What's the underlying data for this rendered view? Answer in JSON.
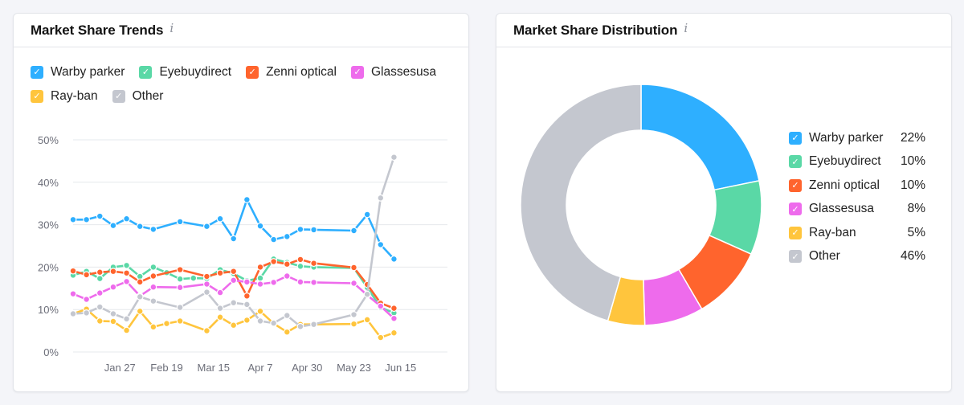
{
  "trends": {
    "title": "Market Share Trends",
    "info_icon": "i",
    "legend": [
      {
        "label": "Warby parker",
        "color": "#2eafff"
      },
      {
        "label": "Eyebuydirect",
        "color": "#5ad8a6"
      },
      {
        "label": "Zenni optical",
        "color": "#ff642d"
      },
      {
        "label": "Glassesusa",
        "color": "#ee6bec"
      },
      {
        "label": "Ray-ban",
        "color": "#ffc53d"
      },
      {
        "label": "Other",
        "color": "#c4c7cf"
      }
    ]
  },
  "distribution": {
    "title": "Market Share Distribution",
    "info_icon": "i",
    "legend": [
      {
        "label": "Warby parker",
        "percent": "22%",
        "color": "#2eafff"
      },
      {
        "label": "Eyebuydirect",
        "percent": "10%",
        "color": "#5ad8a6"
      },
      {
        "label": "Zenni optical",
        "percent": "10%",
        "color": "#ff642d"
      },
      {
        "label": "Glassesusa",
        "percent": "8%",
        "color": "#ee6bec"
      },
      {
        "label": "Ray-ban",
        "percent": "5%",
        "color": "#ffc53d"
      },
      {
        "label": "Other",
        "percent": "46%",
        "color": "#c4c7cf"
      }
    ]
  },
  "chart_data": [
    {
      "type": "line",
      "title": "Market Share Trends",
      "ylim": [
        0,
        50
      ],
      "y_ticks": [
        0,
        10,
        20,
        30,
        40,
        50
      ],
      "y_tick_labels": [
        "0%",
        "10%",
        "20%",
        "30%",
        "40%",
        "50%"
      ],
      "x_range": [
        0,
        28
      ],
      "x_ticks": [
        {
          "x": 3.5,
          "label": "Jan 27"
        },
        {
          "x": 7,
          "label": "Feb 19"
        },
        {
          "x": 10.5,
          "label": "Mar 15"
        },
        {
          "x": 14,
          "label": "Apr 7"
        },
        {
          "x": 17.5,
          "label": "Apr 30"
        },
        {
          "x": 21,
          "label": "May 23"
        },
        {
          "x": 24.5,
          "label": "Jun 15"
        }
      ],
      "grid": true,
      "series": [
        {
          "name": "Warby parker",
          "color": "#2eafff",
          "x": [
            0,
            1,
            2,
            3,
            4,
            5,
            6,
            8,
            10,
            11,
            12,
            13,
            14,
            15,
            16,
            17,
            18,
            21,
            22,
            23,
            24
          ],
          "values": [
            31.2,
            31.2,
            32,
            29.8,
            31.4,
            29.6,
            28.9,
            30.7,
            29.6,
            31.4,
            26.7,
            35.9,
            29.7,
            26.5,
            27.2,
            28.9,
            28.8,
            28.6,
            32.4,
            25.3,
            21.9
          ]
        },
        {
          "name": "Eyebuydirect",
          "color": "#5ad8a6",
          "x": [
            0,
            1,
            2,
            3,
            4,
            5,
            6,
            7,
            8,
            9,
            10,
            11,
            12,
            13,
            14,
            15,
            16,
            17,
            18,
            21,
            22,
            23,
            24
          ],
          "values": [
            18.1,
            19,
            17.3,
            20,
            20.4,
            17.8,
            20,
            18.7,
            17.2,
            17.4,
            17.3,
            19.4,
            18.5,
            16.8,
            17.4,
            21.9,
            21.1,
            20.2,
            20,
            19.8,
            15.2,
            10.5,
            9.2
          ]
        },
        {
          "name": "Zenni optical",
          "color": "#ff642d",
          "x": [
            0,
            1,
            2,
            3,
            4,
            5,
            6,
            8,
            10,
            11,
            12,
            13,
            14,
            15,
            16,
            17,
            18,
            21,
            22,
            23,
            24
          ],
          "values": [
            19.1,
            18.2,
            18.8,
            19,
            18.6,
            16.5,
            17.9,
            19.4,
            17.8,
            18.6,
            19,
            13.2,
            20,
            21.3,
            20.7,
            21.8,
            20.9,
            19.9,
            15.9,
            11.5,
            10.3
          ]
        },
        {
          "name": "Glassesusa",
          "color": "#ee6bec",
          "x": [
            0,
            1,
            2,
            3,
            4,
            5,
            6,
            8,
            10,
            11,
            12,
            13,
            14,
            15,
            16,
            17,
            18,
            21,
            22,
            23,
            24
          ],
          "values": [
            13.7,
            12.4,
            13.9,
            15.3,
            16.6,
            13.2,
            15.3,
            15.2,
            16,
            14,
            16.9,
            16.5,
            16,
            16.4,
            17.9,
            16.5,
            16.4,
            16.2,
            13.4,
            10.8,
            7.9
          ]
        },
        {
          "name": "Ray-ban",
          "color": "#ffc53d",
          "x": [
            0,
            1,
            2,
            3,
            4,
            5,
            6,
            7,
            8,
            10,
            11,
            12,
            13,
            14,
            15,
            16,
            17,
            18,
            21,
            22,
            23,
            24
          ],
          "values": [
            9,
            10.1,
            7.3,
            7.2,
            5.1,
            9.6,
            5.9,
            6.7,
            7.3,
            5,
            8.2,
            6.3,
            7.5,
            9.6,
            6.7,
            4.7,
            6.5,
            6.5,
            6.6,
            7.6,
            3.4,
            4.5
          ]
        },
        {
          "name": "Other",
          "color": "#c4c7cf",
          "x": [
            0,
            1,
            2,
            3,
            4,
            5,
            6,
            8,
            10,
            11,
            12,
            13,
            14,
            15,
            16,
            17,
            18,
            21,
            22,
            23,
            24
          ],
          "values": [
            9,
            9.2,
            10.6,
            9,
            7.8,
            13,
            12,
            10.5,
            14.1,
            10.3,
            11.6,
            11.2,
            7.3,
            6.8,
            8.6,
            6,
            6.5,
            8.8,
            13.6,
            36.3,
            45.9
          ]
        }
      ]
    },
    {
      "type": "pie",
      "title": "Market Share Distribution",
      "donut": true,
      "start": "top",
      "labels": [
        "Warby parker",
        "Eyebuydirect",
        "Zenni optical",
        "Glassesusa",
        "Ray-ban",
        "Other"
      ],
      "values": [
        22,
        10,
        10,
        8,
        5,
        46
      ],
      "colors": [
        "#2eafff",
        "#5ad8a6",
        "#ff642d",
        "#ee6bec",
        "#ffc53d",
        "#c4c7cf"
      ]
    }
  ]
}
